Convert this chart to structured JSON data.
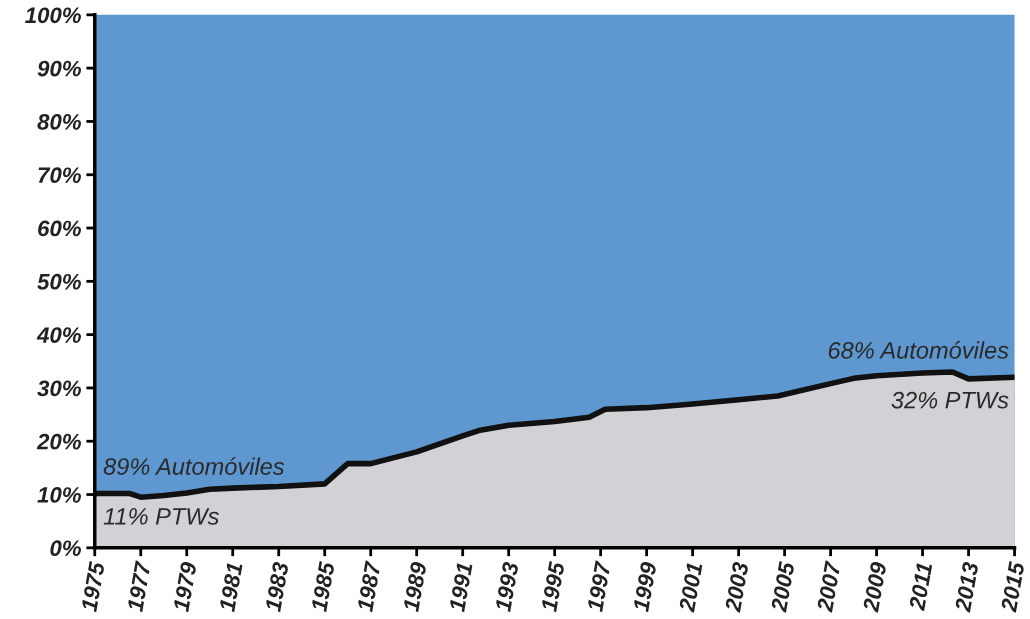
{
  "chart_data": {
    "type": "area",
    "x": [
      1975,
      1976.5,
      1977,
      1978,
      1979,
      1980,
      1981,
      1983,
      1985,
      1986,
      1987,
      1989,
      1991,
      1991.7,
      1993,
      1995,
      1996.5,
      1997.2,
      1999,
      2001,
      2003,
      2004.7,
      2007,
      2008,
      2009,
      2011,
      2012.3,
      2013,
      2015
    ],
    "series": [
      {
        "color": "#111111",
        "values": [
          10.2,
          10.2,
          9.5,
          9.8,
          10.3,
          11,
          11.2,
          11.5,
          12,
          15.8,
          15.8,
          18,
          21,
          22,
          23,
          23.7,
          24.5,
          26,
          26.3,
          27,
          27.8,
          28.5,
          30.8,
          31.8,
          32.3,
          32.8,
          33,
          31.7,
          32
        ]
      }
    ],
    "xlim": [
      1975,
      2015
    ],
    "xticks": [
      1975,
      1977,
      1979,
      1981,
      1983,
      1985,
      1987,
      1989,
      1991,
      1993,
      1995,
      1997,
      1999,
      2001,
      2003,
      2005,
      2007,
      2009,
      2011,
      2013,
      2015
    ],
    "ylim": [
      0,
      100
    ],
    "yticks": [
      {
        "value": 0,
        "label": "0%"
      },
      {
        "value": 10,
        "label": "10%"
      },
      {
        "value": 20,
        "label": "20%"
      },
      {
        "value": 30,
        "label": "30%"
      },
      {
        "value": 40,
        "label": "40%"
      },
      {
        "value": 50,
        "label": "50%"
      },
      {
        "value": 60,
        "label": "60%"
      },
      {
        "value": 70,
        "label": "70%"
      },
      {
        "value": 80,
        "label": "80%"
      },
      {
        "value": 90,
        "label": "90%"
      },
      {
        "value": 100,
        "label": "100%"
      }
    ],
    "grid": false,
    "annotations": [
      "89% Automóviles",
      "11% PTWs",
      "68% Automóviles",
      "32% PTWs"
    ]
  }
}
